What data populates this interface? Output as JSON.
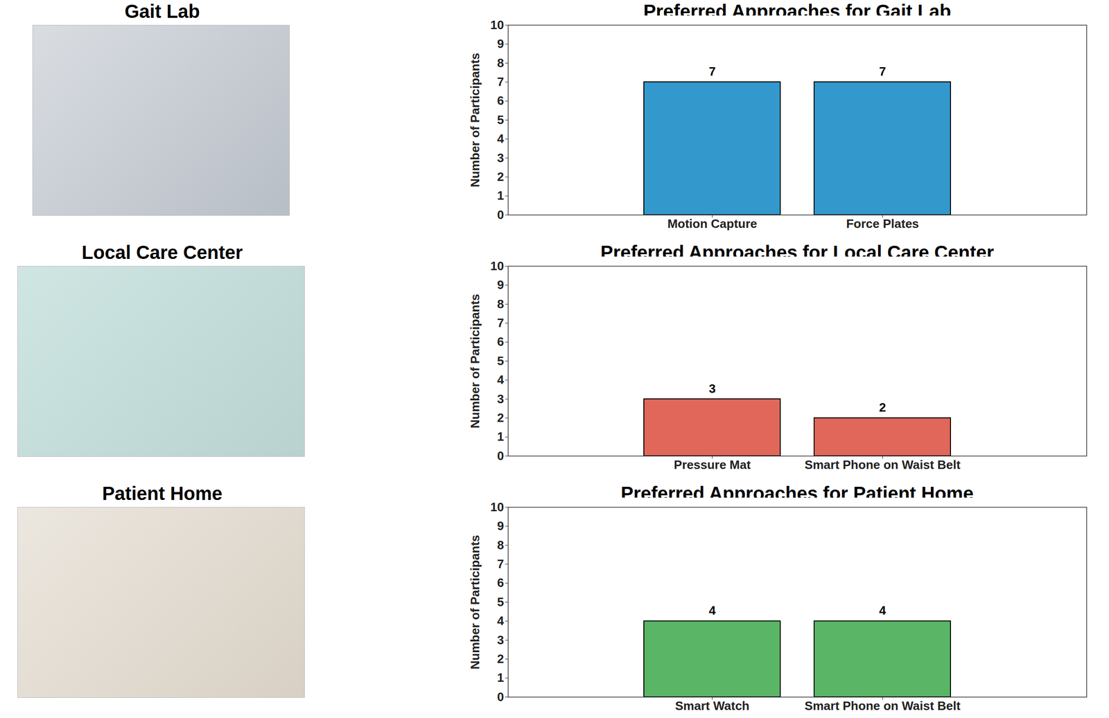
{
  "photos": [
    {
      "title": "Gait Lab"
    },
    {
      "title": "Local Care Center"
    },
    {
      "title": "Patient Home"
    }
  ],
  "chart_data": [
    {
      "type": "bar",
      "title": "Preferred Approaches for Gait Lab",
      "ylabel": "Number of Participants",
      "categories": [
        "Motion Capture",
        "Force Plates"
      ],
      "values": [
        7,
        7
      ],
      "color": "#3399cc",
      "ylim": [
        0,
        10
      ],
      "yticks": [
        0,
        1,
        2,
        3,
        4,
        5,
        6,
        7,
        8,
        9,
        10
      ],
      "data_labels": true
    },
    {
      "type": "bar",
      "title": "Preferred Approaches for Local Care Center",
      "ylabel": "Number of Participants",
      "categories": [
        "Pressure Mat",
        "Smart Phone on Waist Belt"
      ],
      "values": [
        3,
        2
      ],
      "color": "#e0675a",
      "ylim": [
        0,
        10
      ],
      "yticks": [
        0,
        1,
        2,
        3,
        4,
        5,
        6,
        7,
        8,
        9,
        10
      ],
      "data_labels": true
    },
    {
      "type": "bar",
      "title": "Preferred Approaches for Patient Home",
      "ylabel": "Number of Participants",
      "categories": [
        "Smart Watch",
        "Smart Phone on Waist Belt"
      ],
      "values": [
        4,
        4
      ],
      "color": "#5ab566",
      "ylim": [
        0,
        10
      ],
      "yticks": [
        0,
        1,
        2,
        3,
        4,
        5,
        6,
        7,
        8,
        9,
        10
      ],
      "data_labels": true
    }
  ]
}
